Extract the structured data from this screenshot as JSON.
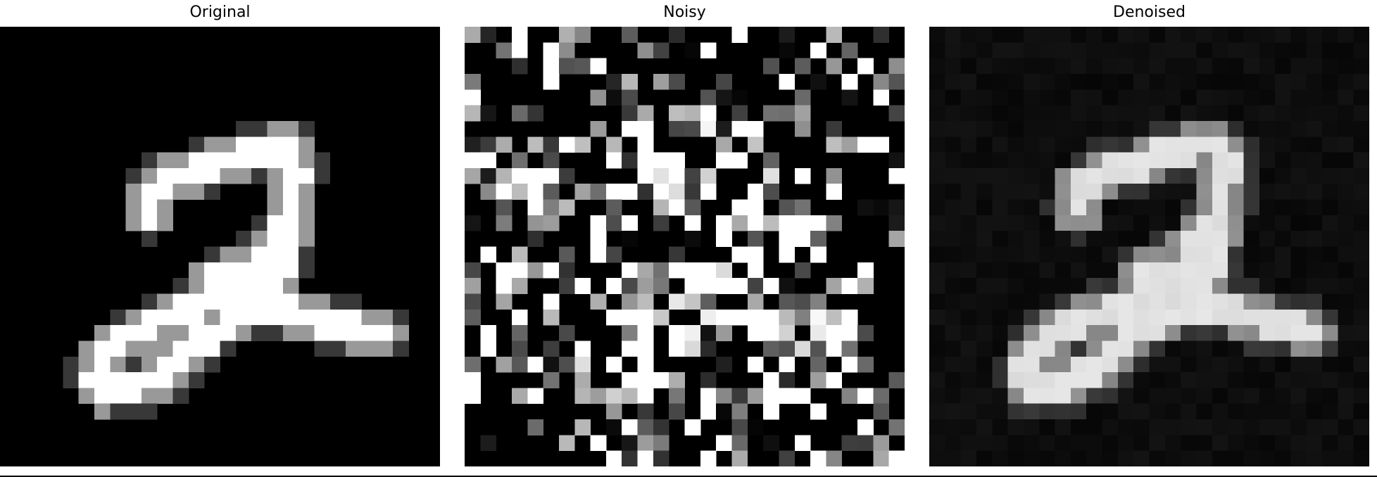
{
  "panels": [
    {
      "id": "original",
      "title": "Original"
    },
    {
      "id": "noisy",
      "title": "Noisy"
    },
    {
      "id": "denoised",
      "title": "Denoised"
    }
  ]
}
